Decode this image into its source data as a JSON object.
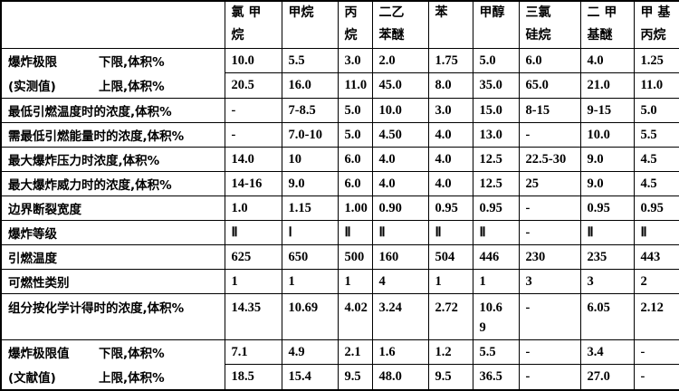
{
  "table": {
    "corner": "",
    "columns": [
      "氯 甲\n烷",
      "甲烷",
      "丙\n烷",
      "二乙\n苯醚",
      "苯",
      "甲醇",
      "三氯\n硅烷",
      "二 甲\n基醚",
      "甲 基\n丙烷"
    ],
    "row_groups": [
      {
        "type": "span2",
        "label_top_left": "爆炸极限",
        "label_top_right": "下限,体积%",
        "label_bottom_left": "(实测值)",
        "label_bottom_right": "上限,体积%",
        "cells_top": [
          "10.0",
          "5.5",
          "3.0",
          "2.0",
          "1.75",
          "5.0",
          "6.0",
          "4.0",
          "1.25"
        ],
        "cells_bottom": [
          "20.5",
          "16.0",
          "11.0",
          "45.0",
          "8.0",
          "35.0",
          "65.0",
          "21.0",
          "11.0"
        ]
      },
      {
        "type": "single",
        "label": "最低引燃温度时的浓度,体积%",
        "cells": [
          "-",
          "7-8.5",
          "5.0",
          "10.0",
          "3.0",
          "15.0",
          "8-15",
          "9-15",
          "5.0"
        ]
      },
      {
        "type": "single",
        "label": "需最低引燃能量时的浓度,体积%",
        "cells": [
          "-",
          "7.0-10",
          "5.0",
          "4.50",
          "4.0",
          "13.0",
          "-",
          "10.0",
          "5.5"
        ]
      },
      {
        "type": "single",
        "label": "最大爆炸压力时浓度,体积%",
        "cells": [
          "14.0",
          "10",
          "6.0",
          "4.0",
          "4.0",
          "12.5",
          "22.5-30",
          "9.0",
          "4.5"
        ]
      },
      {
        "type": "single",
        "label": "最大爆炸威力时的浓度,体积%",
        "cells": [
          "14-16",
          "9.0",
          "6.0",
          "4.0",
          "4.0",
          "12.5",
          "25",
          "9.0",
          "4.5"
        ]
      },
      {
        "type": "single",
        "label": "边界断裂宽度",
        "cells": [
          "1.0",
          "1.15",
          "1.00",
          "0.90",
          "0.95",
          "0.95",
          "-",
          "0.95",
          "0.95"
        ]
      },
      {
        "type": "single",
        "label": "爆炸等级",
        "cells": [
          "Ⅱ",
          "Ⅰ",
          "Ⅱ",
          "Ⅱ",
          "Ⅱ",
          "Ⅱ",
          "-",
          "Ⅱ",
          "Ⅱ"
        ]
      },
      {
        "type": "single",
        "label": "引燃温度",
        "cells": [
          "625",
          "650",
          "500",
          "160",
          "504",
          "446",
          "230",
          "235",
          "443"
        ]
      },
      {
        "type": "single",
        "label": "可燃性类别",
        "cells": [
          "1",
          "1",
          "1",
          "4",
          "1",
          "1",
          "3",
          "3",
          "2"
        ]
      },
      {
        "type": "single",
        "tall": true,
        "label": "组分按化学计得时的浓度,体积%",
        "cells": [
          "14.35",
          "10.69",
          "4.02",
          "3.24",
          "2.72",
          "10.6\n9",
          "-",
          "6.05",
          "2.12"
        ]
      },
      {
        "type": "span2",
        "label_top_left": "爆炸极限值",
        "label_top_right": "下限,体积%",
        "label_bottom_left": "(文献值)",
        "label_bottom_right": "上限,体积%",
        "cells_top": [
          "7.1",
          "4.9",
          "2.1",
          "1.6",
          "1.2",
          "5.5",
          "-",
          "3.4",
          "-"
        ],
        "cells_bottom": [
          "18.5",
          "15.4",
          "9.5",
          "48.0",
          "9.5",
          "36.5",
          "-",
          "27.0",
          "-"
        ]
      }
    ]
  }
}
